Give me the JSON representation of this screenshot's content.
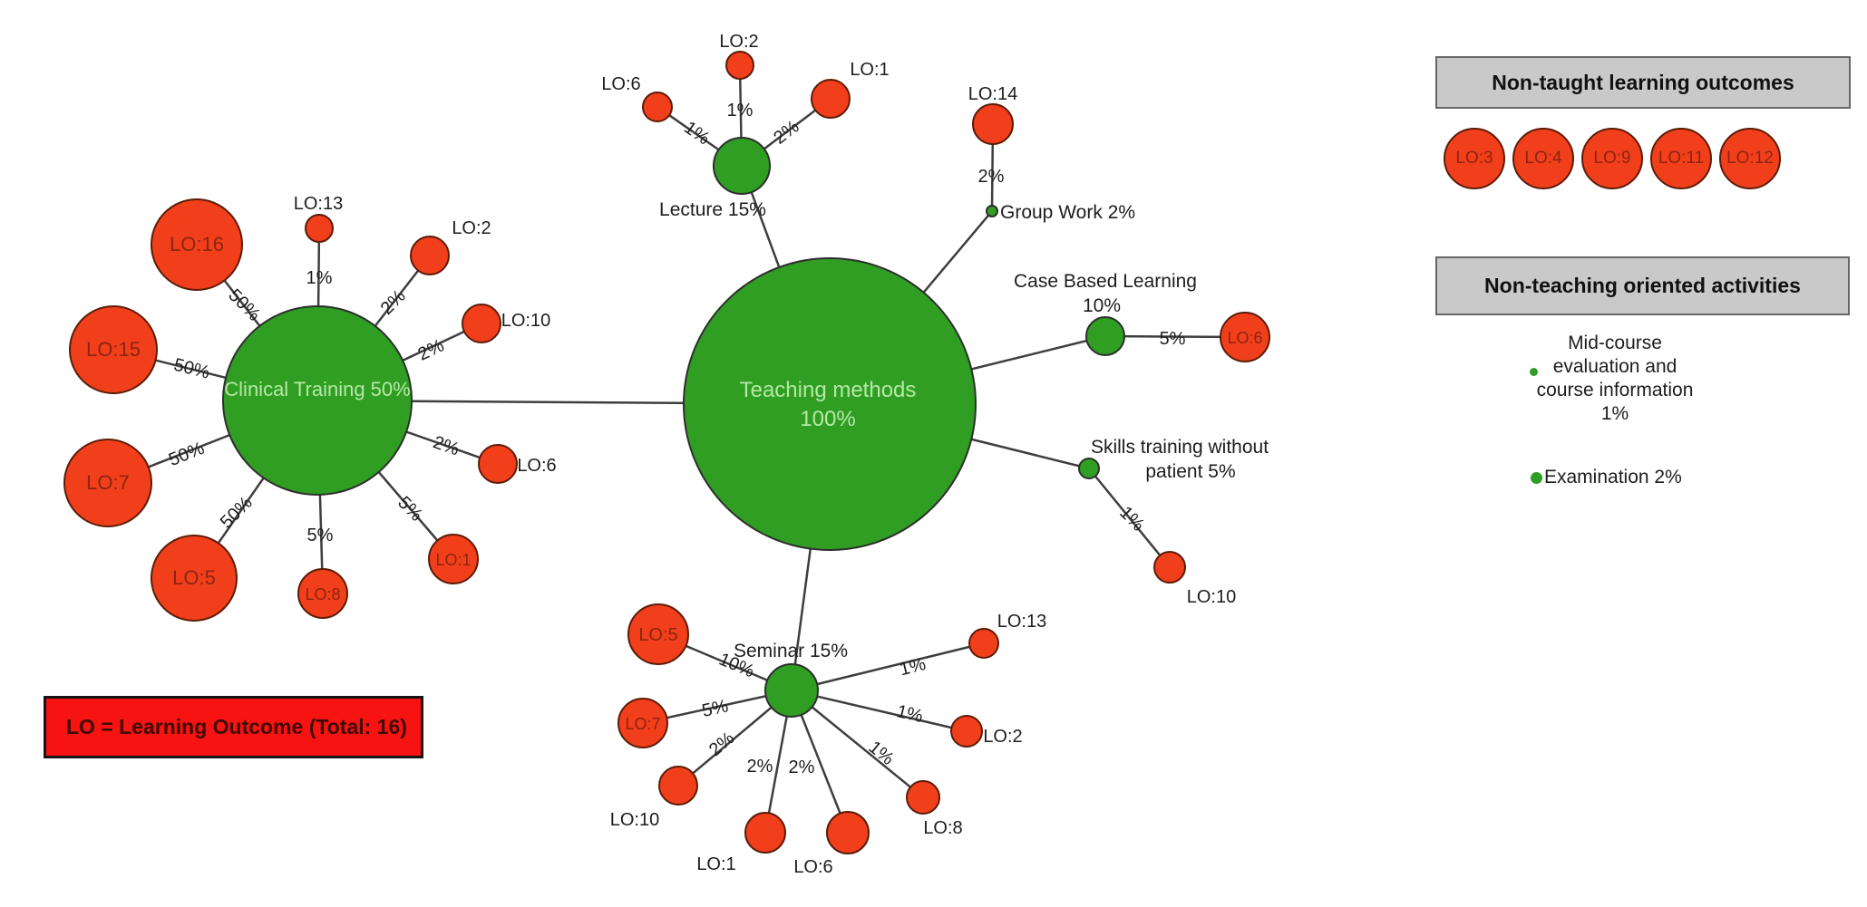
{
  "diagram": {
    "nodes": [
      {
        "id": "teaching",
        "kind": "method",
        "label_lines": [
          "Teaching methods",
          "100%"
        ]
      },
      {
        "id": "clinical",
        "kind": "method",
        "parent": "teaching",
        "label_lines": [
          "Clinical Training 50%"
        ]
      },
      {
        "id": "lecture",
        "kind": "method",
        "parent": "teaching",
        "label_lines": [
          "Lecture 15%"
        ]
      },
      {
        "id": "groupwork",
        "kind": "method",
        "parent": "teaching",
        "label_lines": [
          "Group Work 2%"
        ]
      },
      {
        "id": "cbl",
        "kind": "method",
        "parent": "teaching",
        "label_lines": [
          "Case Based Learning",
          "10%"
        ]
      },
      {
        "id": "skills",
        "kind": "method",
        "parent": "teaching",
        "label_lines": [
          "Skills training without",
          "patient 5%"
        ]
      },
      {
        "id": "seminar",
        "kind": "method",
        "parent": "teaching",
        "label_lines": [
          "Seminar 15%"
        ]
      },
      {
        "id": "lo16",
        "kind": "outcome",
        "parent": "clinical",
        "label_lines": [
          "LO:16"
        ],
        "percent": "50%"
      },
      {
        "id": "lo15",
        "kind": "outcome",
        "parent": "clinical",
        "label_lines": [
          "LO:15"
        ],
        "percent": "50%"
      },
      {
        "id": "lo7c",
        "kind": "outcome",
        "parent": "clinical",
        "label_lines": [
          "LO:7"
        ],
        "percent": "50%"
      },
      {
        "id": "lo5c",
        "kind": "outcome",
        "parent": "clinical",
        "label_lines": [
          "LO:5"
        ],
        "percent": "50%"
      },
      {
        "id": "lo13c",
        "kind": "outcome",
        "parent": "clinical",
        "label_lines": [
          "LO:13"
        ],
        "percent": "1%"
      },
      {
        "id": "lo2c",
        "kind": "outcome",
        "parent": "clinical",
        "label_lines": [
          "LO:2"
        ],
        "percent": "2%"
      },
      {
        "id": "lo10c",
        "kind": "outcome",
        "parent": "clinical",
        "label_lines": [
          "LO:10"
        ],
        "percent": "2%"
      },
      {
        "id": "lo6c",
        "kind": "outcome",
        "parent": "clinical",
        "label_lines": [
          "LO:6"
        ],
        "percent": "2%"
      },
      {
        "id": "lo8c",
        "kind": "outcome",
        "parent": "clinical",
        "label_lines": [
          "LO:8"
        ],
        "percent": "5%"
      },
      {
        "id": "lo1c",
        "kind": "outcome",
        "parent": "clinical",
        "label_lines": [
          "LO:1"
        ],
        "percent": "5%"
      },
      {
        "id": "lo6l",
        "kind": "outcome",
        "parent": "lecture",
        "label_lines": [
          "LO:6"
        ],
        "percent": "1%"
      },
      {
        "id": "lo2l",
        "kind": "outcome",
        "parent": "lecture",
        "label_lines": [
          "LO:2"
        ],
        "percent": "1%"
      },
      {
        "id": "lo1l",
        "kind": "outcome",
        "parent": "lecture",
        "label_lines": [
          "LO:1"
        ],
        "percent": "2%"
      },
      {
        "id": "lo14",
        "kind": "outcome",
        "parent": "groupwork",
        "label_lines": [
          "LO:14"
        ],
        "percent": "2%"
      },
      {
        "id": "lo6b",
        "kind": "outcome",
        "parent": "cbl",
        "label_lines": [
          "LO:6"
        ],
        "percent": "5%"
      },
      {
        "id": "lo10s",
        "kind": "outcome",
        "parent": "skills",
        "label_lines": [
          "LO:10"
        ],
        "percent": "1%"
      },
      {
        "id": "lo5s",
        "kind": "outcome",
        "parent": "seminar",
        "label_lines": [
          "LO:5"
        ],
        "percent": "10%"
      },
      {
        "id": "lo7s",
        "kind": "outcome",
        "parent": "seminar",
        "label_lines": [
          "LO:7"
        ],
        "percent": "5%"
      },
      {
        "id": "lo10m",
        "kind": "outcome",
        "parent": "seminar",
        "label_lines": [
          "LO:10"
        ],
        "percent": "2%"
      },
      {
        "id": "lo1s",
        "kind": "outcome",
        "parent": "seminar",
        "label_lines": [
          "LO:1"
        ],
        "percent": "2%"
      },
      {
        "id": "lo6s",
        "kind": "outcome",
        "parent": "seminar",
        "label_lines": [
          "LO:6"
        ],
        "percent": "2%"
      },
      {
        "id": "lo8s",
        "kind": "outcome",
        "parent": "seminar",
        "label_lines": [
          "LO:8"
        ],
        "percent": "1%"
      },
      {
        "id": "lo2s",
        "kind": "outcome",
        "parent": "seminar",
        "label_lines": [
          "LO:2"
        ],
        "percent": "1%"
      },
      {
        "id": "lo13s",
        "kind": "outcome",
        "parent": "seminar",
        "label_lines": [
          "LO:13"
        ],
        "percent": "1%"
      }
    ]
  },
  "legend": {
    "label": "LO = Learning Outcome (Total: 16)"
  },
  "side_panel": {
    "non_taught": {
      "title": "Non-taught learning outcomes",
      "outcomes": [
        "LO:3",
        "LO:4",
        "LO:9",
        "LO:11",
        "LO:12"
      ]
    },
    "non_teaching": {
      "title": "Non-teaching oriented activities",
      "mid_course_lines": [
        "Mid-course",
        "evaluation and",
        "course information",
        "1%"
      ],
      "examination": "Examination 2%"
    }
  },
  "colors": {
    "method_green": "#2f9e23",
    "method_stroke": "#2e2e2e",
    "outcome_red": "#f23f1b",
    "outcome_stroke": "#5c1c08",
    "label_light_green": "#b6e8a4",
    "label_dark_red": "#8c2410",
    "text_black": "#1d1d1d",
    "edge_gray": "#3e3e3e",
    "panel_gray": "#c9c9c9",
    "legend_red": "#f61311",
    "legend_text": "#420902"
  }
}
